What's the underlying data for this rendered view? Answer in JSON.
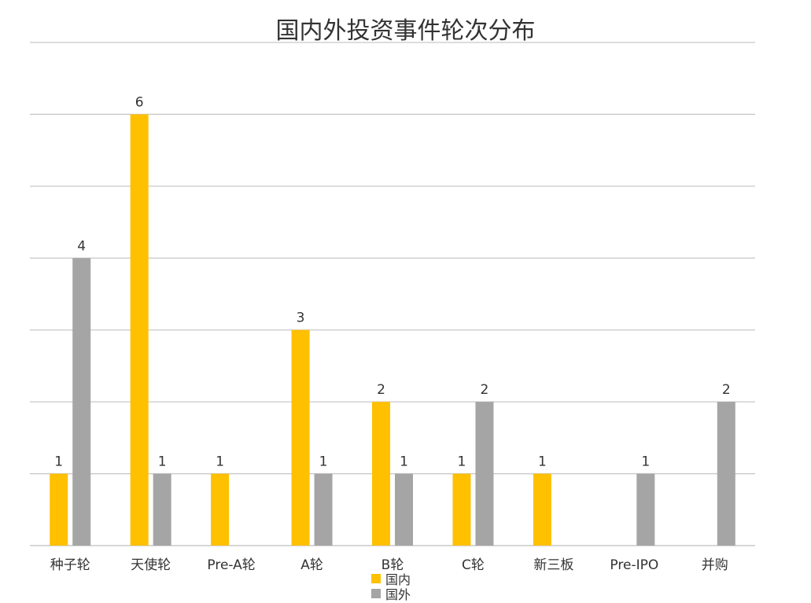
{
  "chart_data": {
    "type": "bar",
    "title": "国内外投资事件轮次分布",
    "categories": [
      "种子轮",
      "天使轮",
      "Pre-A轮",
      "A轮",
      "B轮",
      "C轮",
      "新三板",
      "Pre-IPO",
      "并购"
    ],
    "series": [
      {
        "name": "国内",
        "color": "#FFC000",
        "values": [
          1,
          6,
          1,
          3,
          2,
          1,
          1,
          null,
          null
        ]
      },
      {
        "name": "国外",
        "color": "#A5A5A5",
        "values": [
          4,
          1,
          null,
          1,
          1,
          2,
          null,
          1,
          2
        ]
      }
    ],
    "ylim": [
      0,
      7
    ],
    "grid": true,
    "legend_position": "bottom",
    "xlabel": "",
    "ylabel": ""
  }
}
